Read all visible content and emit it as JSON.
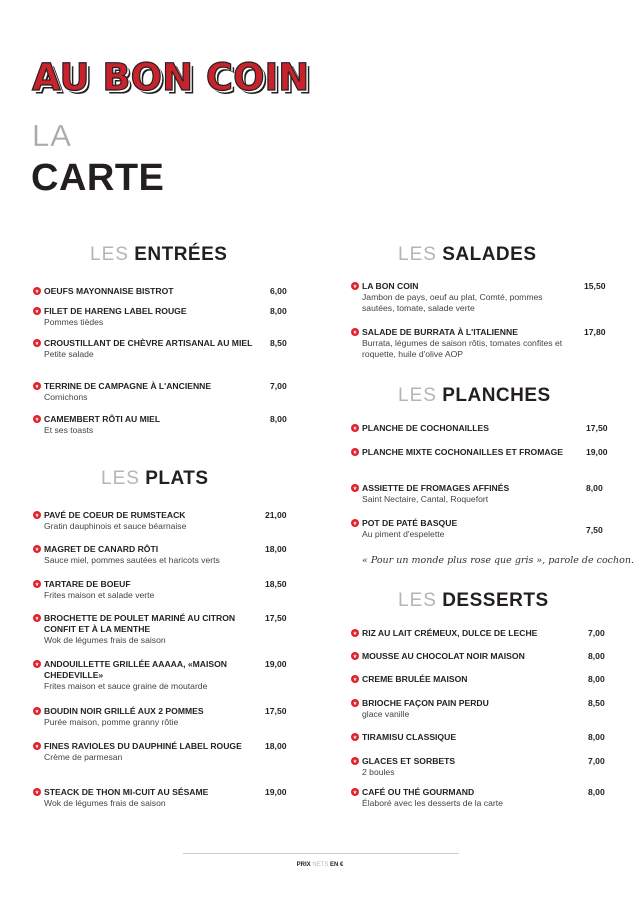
{
  "header": {
    "logo": "AU BON COIN",
    "la": "LA",
    "carte": "CARTE"
  },
  "sections": {
    "entrees": {
      "les": "LES",
      "name": "ENTRÉES",
      "items": [
        {
          "name": "OEUFS MAYONNAISE BISTROT",
          "desc": "",
          "price": "6,00"
        },
        {
          "name": "FILET DE HARENG LABEL ROUGE",
          "desc": "Pommes tièdes",
          "price": "8,00"
        },
        {
          "name": "CROUSTILLANT DE CHÈVRE ARTISANAL AU MIEL",
          "desc": "Petite salade",
          "price": "8,50"
        },
        {
          "name": "TERRINE DE CAMPAGNE À L'ANCIENNE",
          "desc": "Cornichons",
          "price": "7,00"
        },
        {
          "name": "CAMEMBERT RÔTI AU MIEL",
          "desc": "Et ses toasts",
          "price": "8,00"
        }
      ]
    },
    "plats": {
      "les": "LES",
      "name": "PLATS",
      "items": [
        {
          "name": "PAVÉ DE COEUR DE RUMSTEACK",
          "desc": "Gratin dauphinois et sauce béarnaise",
          "price": "21,00"
        },
        {
          "name": "MAGRET DE CANARD RÔTI",
          "desc": "Sauce miel, pommes sautées et haricots verts",
          "price": "18,00"
        },
        {
          "name": "TARTARE DE BOEUF",
          "desc": "Frites maison et salade verte",
          "price": "18,50"
        },
        {
          "name": "BROCHETTE DE POULET MARINÉ AU CITRON CONFIT ET À LA MENTHE",
          "desc": "Wok de légumes frais de saison",
          "price": "17,50"
        },
        {
          "name": "ANDOUILLETTE GRILLÉE AAAAA, «MAISON CHEDEVILLE»",
          "desc": "Frites maison et sauce graine de moutarde",
          "price": "19,00"
        },
        {
          "name": "BOUDIN NOIR GRILLÉ AUX 2 POMMES",
          "desc": "Purée maison, pomme granny rôtie",
          "price": "17,50"
        },
        {
          "name": "FINES RAVIOLES DU DAUPHINÉ LABEL ROUGE",
          "desc": "Crème de parmesan",
          "price": "18,00"
        },
        {
          "name": "STEACK DE THON MI-CUIT AU SÉSAME",
          "desc": "Wok de légumes frais de saison",
          "price": "19,00"
        }
      ]
    },
    "salades": {
      "les": "LES",
      "name": "SALADES",
      "items": [
        {
          "name": "LA BON COIN",
          "desc": "Jambon de pays, oeuf au plat, Comté, pommes sautées, tomate, salade verte",
          "price": "15,50"
        },
        {
          "name": "SALADE DE BURRATA À L'ITALIENNE",
          "desc": "Burrata, légumes de saison rôtis, tomates confites et roquette, huile d'olive AOP",
          "price": "17,80"
        }
      ]
    },
    "planches": {
      "les": "LES",
      "name": "PLANCHES",
      "items": [
        {
          "name": "PLANCHE DE COCHONAILLES",
          "desc": "",
          "price": "17,50"
        },
        {
          "name": "PLANCHE MIXTE COCHONAILLES ET FROMAGE",
          "desc": "",
          "price": "19,00"
        },
        {
          "name": "ASSIETTE DE FROMAGES AFFINÉS",
          "desc": "Saint Nectaire, Cantal, Roquefort",
          "price": "8,00"
        },
        {
          "name": "POT DE PATÉ BASQUE",
          "desc": "Au piment d'espelette",
          "price": "7,50"
        }
      ],
      "quote": "« Pour un monde plus rose que gris », parole de cochon."
    },
    "desserts": {
      "les": "LES",
      "name": "DESSERTS",
      "items": [
        {
          "name": "RIZ AU LAIT CRÉMEUX, DULCE DE LECHE",
          "desc": "",
          "price": "7,00"
        },
        {
          "name": "MOUSSE AU CHOCOLAT NOIR MAISON",
          "desc": "",
          "price": "8,00"
        },
        {
          "name": "CREME BRULÉE MAISON",
          "desc": "",
          "price": "8,00"
        },
        {
          "name": "BRIOCHE FAÇON PAIN PERDU",
          "desc": "glace vanille",
          "price": "8,50"
        },
        {
          "name": "TIRAMISU CLASSIQUE",
          "desc": "",
          "price": "8,00"
        },
        {
          "name": "GLACES ET SORBETS",
          "desc": "2 boules",
          "price": "7,00"
        },
        {
          "name": "CAFÉ OU THÉ GOURMAND",
          "desc": "Élaboré avec les desserts de la carte",
          "price": "8,00"
        }
      ]
    }
  },
  "footer": {
    "prix": "PRIX",
    "nets": "NETS",
    "en": "EN €"
  },
  "colors": {
    "accent": "#c8232c",
    "text": "#231f20"
  }
}
